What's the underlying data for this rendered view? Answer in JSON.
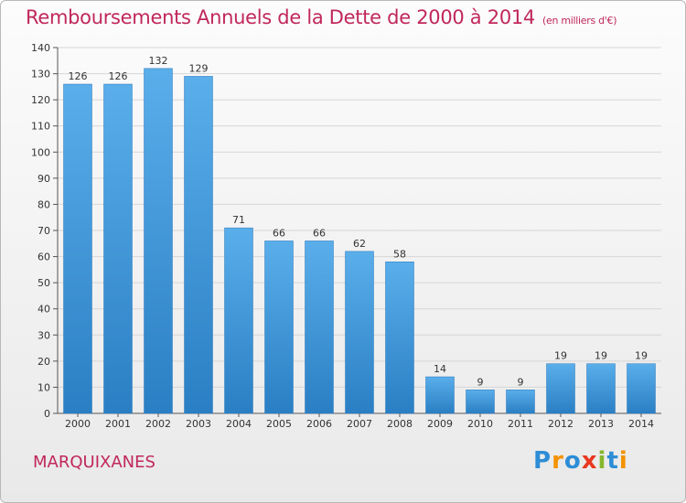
{
  "header": {
    "title": "Remboursements Annuels de la Dette de 2000 à 2014",
    "unit": "(en milliers d'€)"
  },
  "footer": {
    "commune": "MARQUIXANES",
    "logo_letters": [
      "P",
      "r",
      "o",
      "x",
      "i",
      "t",
      "i"
    ]
  },
  "colors": {
    "title": "#c1275c",
    "bar_top": "#5aaeea",
    "bar_bottom": "#2a7fc4",
    "grid": "#d6d6d6"
  },
  "chart_data": {
    "type": "bar",
    "title": "Remboursements Annuels de la Dette de 2000 à 2014",
    "xlabel": "",
    "ylabel": "",
    "categories": [
      "2000",
      "2001",
      "2002",
      "2003",
      "2004",
      "2005",
      "2006",
      "2007",
      "2008",
      "2009",
      "2010",
      "2011",
      "2012",
      "2013",
      "2014"
    ],
    "values": [
      126,
      126,
      132,
      129,
      71,
      66,
      66,
      62,
      58,
      14,
      9,
      9,
      19,
      19,
      19
    ],
    "ylim": [
      0,
      140
    ],
    "yticks": [
      0,
      10,
      20,
      30,
      40,
      50,
      60,
      70,
      80,
      90,
      100,
      110,
      120,
      130,
      140
    ],
    "grid": true,
    "data_labels": true
  }
}
